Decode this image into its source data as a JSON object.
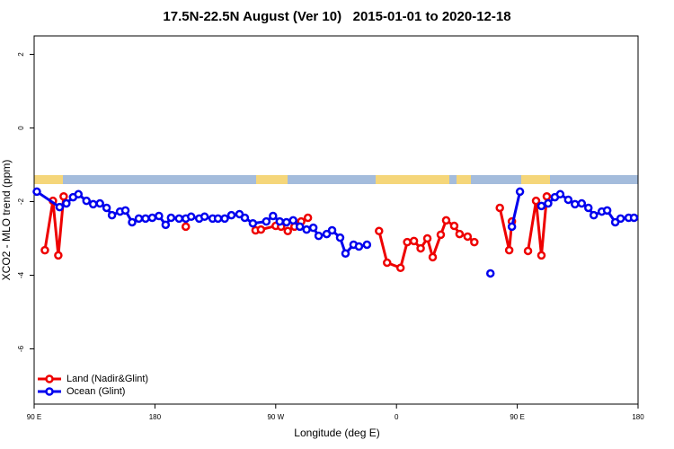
{
  "chart_data": {
    "type": "line",
    "title": "17.5N-22.5N August (Ver 10)   2015-01-01 to 2020-12-18",
    "x_label": "Longitude (deg E)",
    "y_label": "XCO2 - MLO trend (ppm)",
    "xlim": [
      90,
      540
    ],
    "ylim": [
      -7.5,
      2.5
    ],
    "xticks": [
      {
        "value": 90,
        "label": "90 E"
      },
      180,
      {
        "value": 270,
        "label": "90 W"
      },
      {
        "value": 360,
        "label": "0"
      },
      {
        "value": 450,
        "label": "90 E"
      },
      {
        "value": 540,
        "label": "180"
      }
    ],
    "yticks": [
      2,
      0,
      -2,
      -4,
      -6
    ],
    "grid": false,
    "legend": "bottom-left",
    "series": [
      {
        "name": "Land (Nadir&Glint)",
        "color": "#ee0000",
        "x": [
          98,
          104,
          108,
          112,
          null,
          203,
          null,
          255,
          259,
          270,
          274,
          279,
          284,
          289,
          294,
          null,
          347,
          353,
          363,
          368,
          373,
          378,
          383,
          387,
          393,
          397,
          403,
          407,
          413,
          418,
          null,
          437,
          444,
          446,
          null,
          458,
          464,
          468,
          472
        ],
        "values": [
          -3.32,
          -1.98,
          -3.46,
          -1.86,
          null,
          -2.68,
          null,
          -2.78,
          -2.76,
          -2.66,
          -2.68,
          -2.8,
          -2.68,
          -2.54,
          -2.44,
          null,
          -2.8,
          -3.66,
          -3.8,
          -3.1,
          -3.07,
          -3.27,
          -3.0,
          -3.51,
          -2.9,
          -2.51,
          -2.66,
          -2.88,
          -2.95,
          -3.1,
          null,
          -2.17,
          -3.32,
          -2.54,
          null,
          -3.34,
          -1.98,
          -3.46,
          -1.86
        ]
      },
      {
        "name": "Ocean (Glint)",
        "color": "#0000ee",
        "x": [
          92,
          109,
          114,
          119,
          123,
          129,
          134,
          139,
          144,
          148,
          154,
          158,
          163,
          168,
          173,
          178,
          183,
          188,
          192,
          198,
          203,
          207,
          213,
          217,
          223,
          227,
          232,
          237,
          243,
          247,
          253,
          263,
          268,
          273,
          278,
          283,
          288,
          293,
          298,
          302,
          308,
          312,
          318,
          322,
          328,
          332,
          338,
          null,
          430,
          null,
          446,
          452,
          null,
          468,
          473,
          478,
          482,
          488,
          493,
          498,
          503,
          507,
          513,
          517,
          523,
          527,
          533,
          537
        ],
        "values": [
          -1.73,
          -2.15,
          -2.05,
          -1.88,
          -1.8,
          -1.98,
          -2.07,
          -2.05,
          -2.17,
          -2.37,
          -2.27,
          -2.24,
          -2.56,
          -2.46,
          -2.46,
          -2.44,
          -2.39,
          -2.63,
          -2.44,
          -2.46,
          -2.46,
          -2.41,
          -2.46,
          -2.41,
          -2.46,
          -2.46,
          -2.46,
          -2.37,
          -2.34,
          -2.44,
          -2.59,
          -2.54,
          -2.39,
          -2.54,
          -2.56,
          -2.51,
          -2.68,
          -2.76,
          -2.71,
          -2.93,
          -2.88,
          -2.78,
          -2.98,
          -3.41,
          -3.17,
          -3.22,
          -3.17,
          null,
          -3.95,
          null,
          -2.68,
          -1.73,
          null,
          -2.12,
          -2.05,
          -1.88,
          -1.8,
          -1.95,
          -2.07,
          -2.05,
          -2.17,
          -2.37,
          -2.27,
          -2.24,
          -2.56,
          -2.46,
          -2.44,
          -2.44
        ]
      }
    ]
  }
}
